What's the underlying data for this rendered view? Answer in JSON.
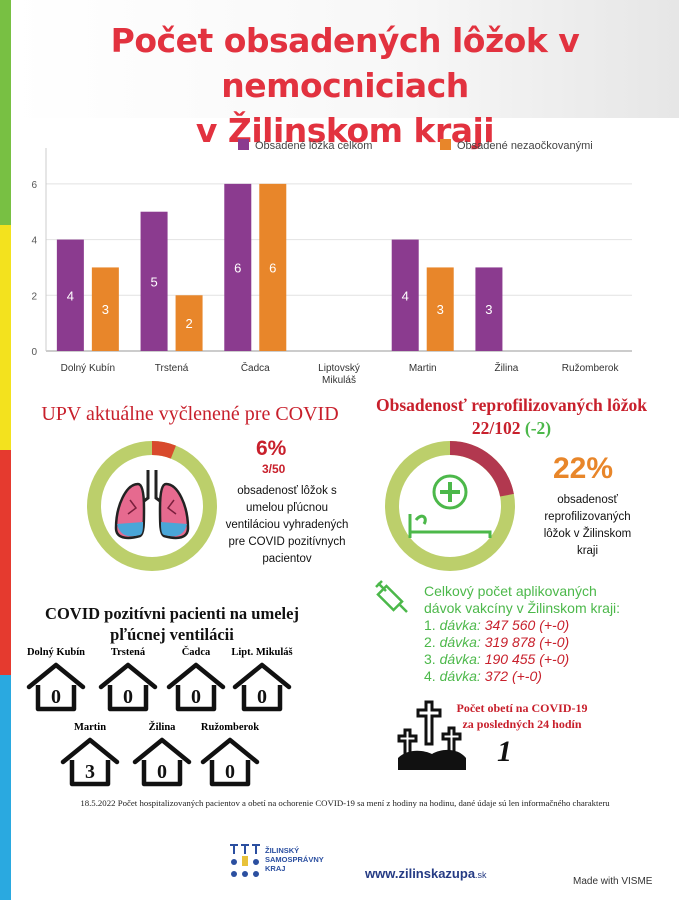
{
  "title_line1": "Počet obsadených lôžok v nemocniciach",
  "title_line2": "v Žilinskom kraji",
  "colors": {
    "purple": "#8b3b8f",
    "orange": "#e8862a",
    "green": "#4cb84a",
    "red": "#c8202c",
    "ring_green": "#bccf6b",
    "ring_red": "#d84a2c",
    "ring_maroon": "#b2384f",
    "sidebar": [
      "#78c043",
      "#f3e21e",
      "#e53a2f",
      "#2aa9e0"
    ]
  },
  "chart_data": {
    "type": "bar",
    "categories": [
      "Dolný Kubín",
      "Trstená",
      "Čadca",
      "Liptovský Mikuláš",
      "Martin",
      "Žilina",
      "Ružomberok"
    ],
    "category_lines": [
      [
        "Dolný Kubín"
      ],
      [
        "Trstená"
      ],
      [
        "Čadca"
      ],
      [
        "Liptovský",
        "Mikuláš"
      ],
      [
        "Martin"
      ],
      [
        "Žilina"
      ],
      [
        "Ružomberok"
      ]
    ],
    "series": [
      {
        "name": "Obsadené lôžka celkom",
        "values": [
          4,
          5,
          6,
          null,
          4,
          3,
          null
        ],
        "color": "#8b3b8f"
      },
      {
        "name": "Obsadené nezaočkovanými",
        "values": [
          3,
          2,
          6,
          null,
          3,
          null,
          null
        ],
        "color": "#e8862a"
      }
    ],
    "ylim": [
      0,
      7
    ],
    "yticks": [
      0,
      2,
      4,
      6
    ],
    "grid": true,
    "legend_position": "top"
  },
  "upv": {
    "heading": "UPV aktuálne vyčlenené pre COVID",
    "percent": "6%",
    "fraction": "3/50",
    "fill": 0.06,
    "description": [
      "obsadenosť lôžok s",
      "umelou pľúcnou",
      "ventiláciou vyhradených",
      "pre COVID pozitívnych",
      "pacientov"
    ]
  },
  "reprofil": {
    "heading_line1": "Obsadenosť reprofilizovaných lôžok",
    "count": "22/102",
    "change": "(-2)",
    "percent": "22%",
    "fill": 0.22,
    "description": [
      "obsadenosť",
      "reprofilizovaných",
      "lôžok v Žilinskom",
      "kraji"
    ]
  },
  "vaccines": {
    "heading_line1": "Celkový počet aplikovaných",
    "heading_line2": "dávok vakcíny v Žilinskom kraji:",
    "doses": [
      {
        "num": "1.",
        "label": "dávka:",
        "value": "347 560",
        "change": "(+-0)"
      },
      {
        "num": "2.",
        "label": "dávka:",
        "value": "319 878",
        "change": "(+-0)"
      },
      {
        "num": "3.",
        "label": "dávka:",
        "value": "190 455",
        "change": "(+-0)"
      },
      {
        "num": "4.",
        "label": "dávka:",
        "value": "372",
        "change": "(+-0)"
      }
    ]
  },
  "ventilation": {
    "heading_line1": "COVID pozitívni pacienti na umelej",
    "heading_line2": "pľúcnej ventilácii",
    "hospitals": [
      {
        "name": "Dolný Kubín",
        "value": "0"
      },
      {
        "name": "Trstená",
        "value": "0"
      },
      {
        "name": "Čadca",
        "value": "0"
      },
      {
        "name": "Lipt. Mikuláš",
        "value": "0"
      },
      {
        "name": "Martin",
        "value": "3"
      },
      {
        "name": "Žilina",
        "value": "0"
      },
      {
        "name": "Ružomberok",
        "value": "0"
      }
    ]
  },
  "deaths": {
    "label_line1": "Počet obetí na COVID-19",
    "label_line2": "za posledných 24 hodín",
    "value": "1"
  },
  "footer_note": "18.5.2022 Počet hospitalizovaných pacientov a obetí na ochorenie COVID-19 sa mení z hodiny na hodinu, dané údaje sú len informačného charakteru",
  "logo": {
    "line1": "ŽILINSKÝ",
    "line2": "SAMOSPRÁVNY",
    "line3": "KRAJ"
  },
  "site": {
    "main": "www.zilinskazupa",
    "suffix": ".sk"
  },
  "made_with": "Made with VISME"
}
